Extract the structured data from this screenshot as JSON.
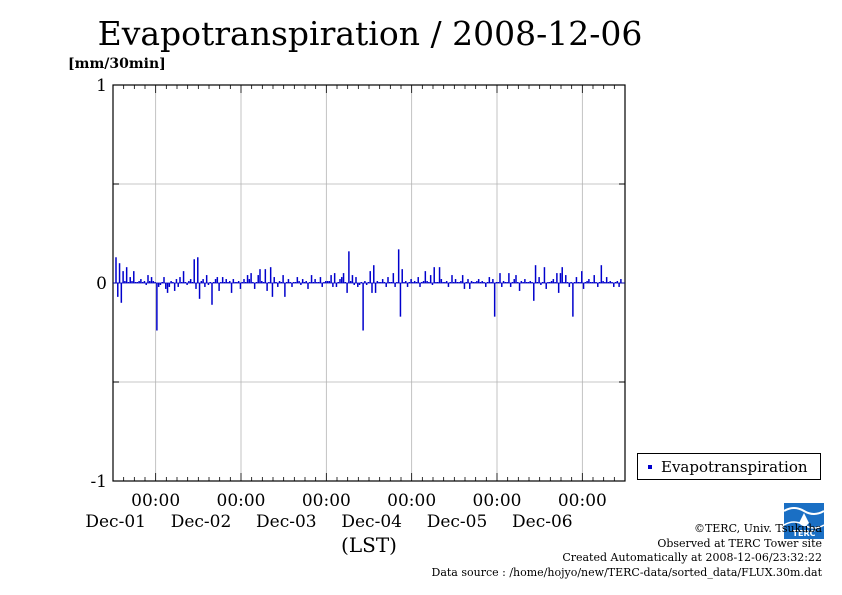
{
  "chart_data": {
    "type": "bar",
    "title": "Evapotranspiration / 2008-12-06",
    "ylabel": "[mm/30min]",
    "xlabel": "(LST)",
    "ylim": [
      -1,
      1
    ],
    "yticks": [
      "1",
      "0",
      "-1"
    ],
    "xticks": [
      {
        "time": "00:00",
        "date": "Dec-01"
      },
      {
        "time": "00:00",
        "date": "Dec-02"
      },
      {
        "time": "00:00",
        "date": "Dec-03"
      },
      {
        "time": "00:00",
        "date": "Dec-04"
      },
      {
        "time": "00:00",
        "date": "Dec-05"
      },
      {
        "time": "00:00",
        "date": "Dec-06"
      }
    ],
    "x_unit": "30-minute intervals starting 2008-11-30 12:00",
    "grid": true,
    "legend_position": "right",
    "series": [
      {
        "name": "Evapotranspiration",
        "color": "#0000cc",
        "values": [
          0.13,
          -0.07,
          0.1,
          -0.1,
          0.06,
          0.01,
          0.08,
          0.0,
          0.03,
          0.01,
          0.06,
          0.0,
          0.0,
          0.01,
          0.02,
          0.0,
          0.01,
          -0.01,
          0.04,
          0.01,
          0.03,
          0.01,
          0.0,
          -0.24,
          -0.02,
          -0.01,
          0.0,
          0.03,
          -0.03,
          -0.05,
          -0.02,
          0.01,
          0.0,
          -0.04,
          0.02,
          -0.02,
          0.03,
          0.0,
          0.06,
          0.0,
          -0.01,
          0.01,
          0.02,
          0.0,
          0.12,
          -0.03,
          0.13,
          -0.08,
          0.01,
          0.02,
          -0.02,
          0.04,
          -0.01,
          0.0,
          -0.11,
          0.0,
          0.02,
          0.03,
          -0.04,
          0.0,
          0.03,
          0.0,
          0.02,
          0.0,
          0.01,
          -0.05,
          0.02,
          0.0,
          0.0,
          0.01,
          -0.03,
          0.0,
          0.02,
          0.0,
          0.04,
          0.02,
          0.05,
          0.0,
          -0.03,
          0.0,
          0.04,
          0.07,
          0.01,
          0.0,
          0.07,
          -0.04,
          0.0,
          0.08,
          -0.07,
          0.03,
          0.0,
          -0.02,
          0.01,
          0.0,
          0.04,
          -0.07,
          0.0,
          0.02,
          0.0,
          -0.02,
          0.0,
          0.0,
          0.03,
          0.01,
          -0.01,
          0.02,
          0.0,
          0.01,
          -0.03,
          0.0,
          0.04,
          0.0,
          0.02,
          0.0,
          0.0,
          0.03,
          -0.02,
          0.0,
          0.01,
          0.01,
          0.01,
          0.04,
          -0.02,
          0.05,
          -0.02,
          0.0,
          0.02,
          0.03,
          0.05,
          0.0,
          -0.05,
          0.16,
          0.01,
          0.04,
          -0.01,
          0.03,
          -0.02,
          -0.01,
          0.0,
          -0.24,
          0.01,
          -0.01,
          0.0,
          0.06,
          -0.05,
          0.09,
          -0.05,
          0.01,
          0.0,
          0.0,
          0.02,
          0.0,
          -0.02,
          0.03,
          0.0,
          0.0,
          0.05,
          -0.02,
          0.0,
          0.17,
          -0.17,
          0.07,
          0.0,
          0.01,
          -0.02,
          0.0,
          0.02,
          0.0,
          0.01,
          0.0,
          0.03,
          -0.02,
          0.0,
          0.01,
          0.06,
          0.01,
          0.0,
          0.04,
          -0.01,
          0.08,
          0.0,
          0.0,
          0.08,
          0.02,
          0.0,
          0.0,
          0.01,
          -0.02,
          0.0,
          0.04,
          0.0,
          0.02,
          0.0,
          0.0,
          0.01,
          0.04,
          -0.03,
          0.0,
          0.02,
          -0.03,
          0.01,
          0.0,
          0.0,
          0.01,
          0.02,
          0.0,
          0.01,
          0.0,
          -0.02,
          0.0,
          0.03,
          0.0,
          0.02,
          -0.17,
          0.0,
          0.0,
          0.05,
          -0.02,
          0.01,
          0.0,
          0.0,
          0.05,
          -0.02,
          0.0,
          0.02,
          0.04,
          0.0,
          -0.04,
          0.01,
          0.0,
          0.02,
          0.0,
          0.0,
          0.01,
          0.0,
          -0.09,
          0.09,
          0.0,
          0.03,
          -0.01,
          0.0,
          0.08,
          -0.03,
          0.0,
          0.0,
          0.01,
          0.02,
          0.0,
          0.05,
          -0.05,
          0.05,
          0.08,
          0.0,
          0.04,
          0.0,
          -0.02,
          0.0,
          -0.17,
          0.0,
          0.03,
          0.0,
          0.0,
          0.06,
          -0.03,
          0.0,
          0.01,
          0.02,
          0.0,
          0.0,
          0.04,
          0.0,
          -0.02,
          0.0,
          0.09,
          0.01,
          0.0,
          0.03,
          0.0,
          0.01,
          0.0,
          -0.02,
          0.0,
          0.01,
          -0.02,
          0.02,
          0.0,
          0.04,
          0.01,
          0.0,
          0.0,
          0.02,
          -0.03,
          0.0,
          0.02,
          0.0,
          0.01,
          0.0,
          -0.02,
          0.0,
          -0.03
        ]
      }
    ]
  },
  "credits": {
    "copyright": "©TERC, Univ. Tsukuba",
    "observed": "Observed at TERC Tower site",
    "created": "Created Automatically at 2008-12-06/23:32:22",
    "source": "Data source : /home/hojyo/new/TERC-data/sorted_data/FLUX.30m.dat"
  },
  "logo": {
    "text": "TERC",
    "color": "#1a6fc4"
  }
}
